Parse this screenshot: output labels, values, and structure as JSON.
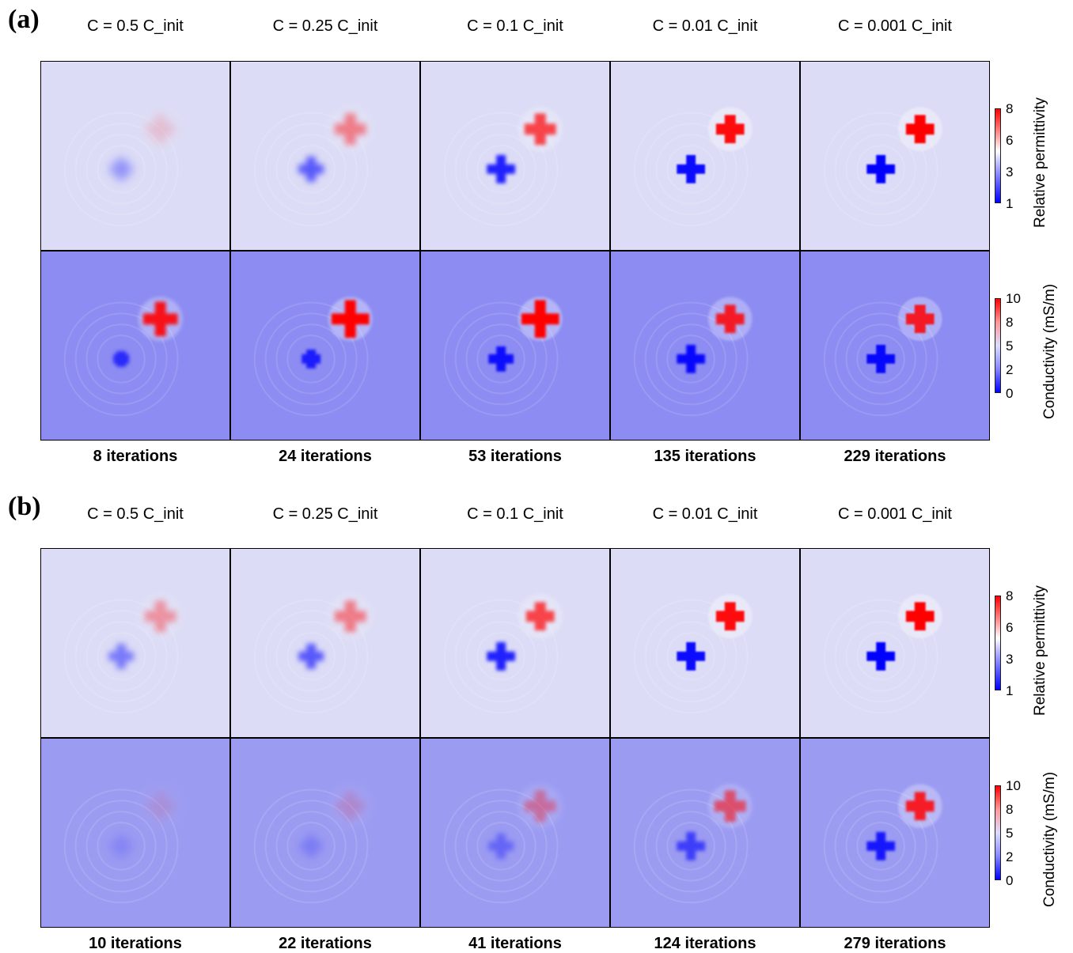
{
  "panels": [
    {
      "label": "(a)",
      "columns": [
        {
          "header": "C = 0.5 C_init",
          "iterations": "8 iterations"
        },
        {
          "header": "C = 0.25 C_init",
          "iterations": "24 iterations"
        },
        {
          "header": "C = 0.1 C_init",
          "iterations": "53 iterations"
        },
        {
          "header": "C = 0.01 C_init",
          "iterations": "135 iterations"
        },
        {
          "header": "C = 0.001 C_init",
          "iterations": "229 iterations"
        }
      ]
    },
    {
      "label": "(b)",
      "columns": [
        {
          "header": "C = 0.5 C_init",
          "iterations": "10 iterations"
        },
        {
          "header": "C = 0.25 C_init",
          "iterations": "22 iterations"
        },
        {
          "header": "C = 0.1 C_init",
          "iterations": "41 iterations"
        },
        {
          "header": "C = 0.01 C_init",
          "iterations": "124 iterations"
        },
        {
          "header": "C = 0.001 C_init",
          "iterations": "279 iterations"
        }
      ]
    }
  ],
  "colorbars": {
    "permittivity": {
      "title": "Relative permittivity",
      "ticks": [
        "8",
        "6",
        "3",
        "1"
      ]
    },
    "conductivity": {
      "title": "Conductivity (mS/m)",
      "ticks": [
        "10",
        "8",
        "5",
        "2",
        "0"
      ]
    }
  },
  "colors": {
    "high": "#ff0000",
    "low": "#0000ff",
    "background_eps": "#dcdcf6",
    "background_sig_a": "#8c8cf2",
    "background_sig_b": "#9b9bf2"
  }
}
